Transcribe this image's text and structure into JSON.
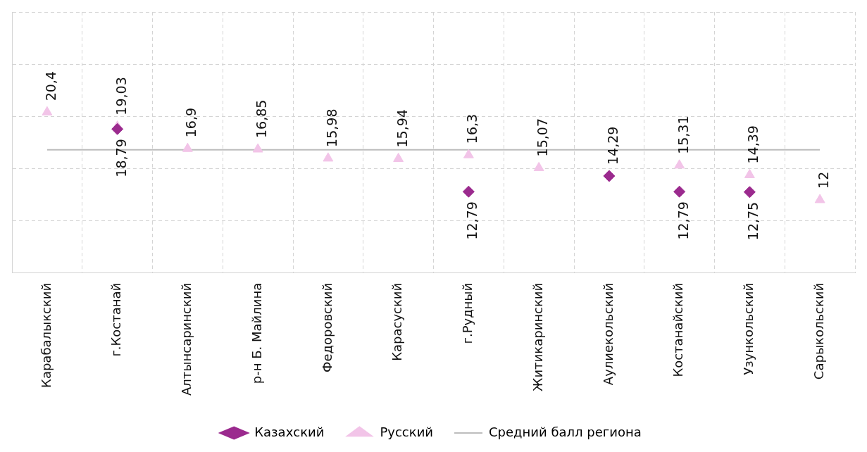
{
  "chart_data": {
    "type": "scatter",
    "categories": [
      "Карабалыкский",
      "г.Костанай",
      "Алтынсаринский",
      "р-н Б. Майлина",
      "Федоровский",
      "Карасуский",
      "г.Рудный",
      "Житикаринский",
      "Аулиекольский",
      "Костанайский",
      "Узункольский",
      "Сарыкольский"
    ],
    "series": [
      {
        "name": "Казахский",
        "marker": "diamond",
        "color": "#9b2a8e",
        "values": [
          null,
          18.79,
          null,
          null,
          null,
          null,
          12.79,
          null,
          14.29,
          12.79,
          12.75,
          null
        ],
        "value_labels": [
          null,
          "18,79",
          null,
          null,
          null,
          null,
          "12,79",
          null,
          "14,29",
          "12,79",
          "12,75",
          null
        ]
      },
      {
        "name": "Русский",
        "marker": "triangle",
        "color": "#f2c4e8",
        "values": [
          20.4,
          19.03,
          16.9,
          16.85,
          15.98,
          15.94,
          16.3,
          15.07,
          null,
          15.31,
          14.39,
          12
        ],
        "value_labels": [
          "20,4",
          "19,03",
          "16,9",
          "16,85",
          "15,98",
          "15,94",
          "16,3",
          "15,07",
          null,
          "15,31",
          "14,39",
          "12"
        ]
      },
      {
        "name": "Средний балл региона",
        "type": "line",
        "marker": "none",
        "color": "#bdbdbd",
        "values": [
          16.8,
          16.8,
          16.8,
          16.8,
          16.8,
          16.8,
          16.8,
          16.8,
          16.8,
          16.8,
          16.8,
          16.8
        ]
      }
    ],
    "ylim": [
      5,
      30
    ],
    "yticks": [
      {
        "value": 5,
        "label": null
      },
      {
        "value": 10,
        "label": null
      },
      {
        "value": 15,
        "label": null
      },
      {
        "value": 20,
        "label": null
      },
      {
        "value": 25,
        "label": null
      },
      {
        "value": 30,
        "label": null
      }
    ],
    "tick_labels": "x",
    "grid": true,
    "legend": "bottom"
  }
}
